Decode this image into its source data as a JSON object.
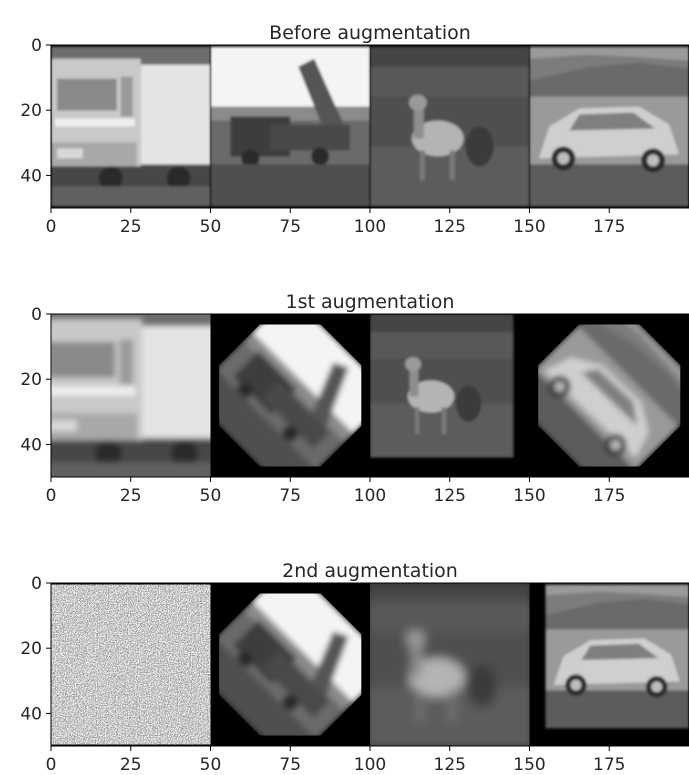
{
  "figure": {
    "panels": [
      {
        "title": "Before augmentation",
        "images": [
          {
            "subject": "truck",
            "transform": "original"
          },
          {
            "subject": "crane vehicle",
            "transform": "original"
          },
          {
            "subject": "deer",
            "transform": "original"
          },
          {
            "subject": "car",
            "transform": "original"
          }
        ]
      },
      {
        "title": "1st augmentation",
        "images": [
          {
            "subject": "truck",
            "transform": "zoom blur"
          },
          {
            "subject": "crane vehicle",
            "transform": "rotated 45"
          },
          {
            "subject": "deer",
            "transform": "shrunk"
          },
          {
            "subject": "car",
            "transform": "rotated 45"
          }
        ]
      },
      {
        "title": "2nd augmentation",
        "images": [
          {
            "subject": "truck",
            "transform": "heavy noise"
          },
          {
            "subject": "crane vehicle",
            "transform": "rotated 45"
          },
          {
            "subject": "deer",
            "transform": "strong blur"
          },
          {
            "subject": "car",
            "transform": "shifted"
          }
        ]
      }
    ]
  },
  "chart_data": [
    {
      "type": "image",
      "title": "Before augmentation",
      "xlim": [
        0,
        200
      ],
      "ylim": [
        50,
        0
      ],
      "xticks": [
        0,
        25,
        50,
        75,
        100,
        125,
        150,
        175
      ],
      "yticks": [
        0,
        20,
        40
      ],
      "colormap": "gray"
    },
    {
      "type": "image",
      "title": "1st augmentation",
      "xlim": [
        0,
        200
      ],
      "ylim": [
        50,
        0
      ],
      "xticks": [
        0,
        25,
        50,
        75,
        100,
        125,
        150,
        175
      ],
      "yticks": [
        0,
        20,
        40
      ],
      "colormap": "gray"
    },
    {
      "type": "image",
      "title": "2nd augmentation",
      "xlim": [
        0,
        200
      ],
      "ylim": [
        50,
        0
      ],
      "xticks": [
        0,
        25,
        50,
        75,
        100,
        125,
        150,
        175
      ],
      "yticks": [
        0,
        20,
        40
      ],
      "colormap": "gray"
    }
  ]
}
